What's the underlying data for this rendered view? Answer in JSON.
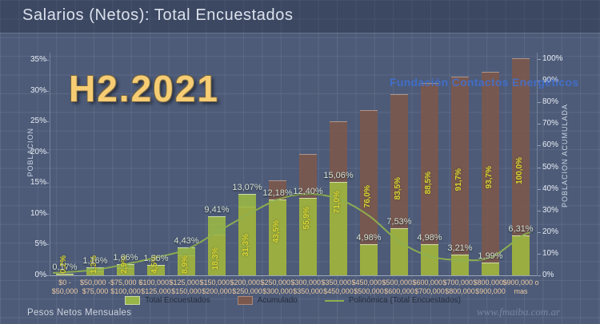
{
  "header": {
    "title": "Salarios (Netos): Total Encuestados"
  },
  "overlay": {
    "period_label": "H2.2021",
    "org_label": "Fundación Contactos Energéticos",
    "watermark": "www.fmaiba.com.ar"
  },
  "footer": {
    "axis_note": "Pesos Netos Mensuales"
  },
  "colors": {
    "background": "#4d5b78",
    "bar_total": "#a4c53e",
    "bar_acumulado": "#7b584e",
    "trend_line": "#8fb04f",
    "period_text": "#f7cd74",
    "org_text": "#3f72d8",
    "acum_label_text": "#d9d633",
    "category_text": "#edcaa3"
  },
  "chart_data": {
    "type": "bar",
    "title": "Salarios (Netos): Total Encuestados",
    "xlabel": "Pesos Netos Mensuales",
    "ylabel_left": "POBLACION",
    "ylabel_right": "POBLACION ACUMULADA",
    "ylim_left": [
      0,
      35
    ],
    "ylim_right": [
      0,
      100
    ],
    "yticks_left": [
      "0%",
      "5%",
      "10%",
      "15%",
      "20%",
      "25%",
      "30%",
      "35%"
    ],
    "yticks_right": [
      "0%",
      "10%",
      "20%",
      "30%",
      "40%",
      "50%",
      "60%",
      "70%",
      "80%",
      "90%",
      "100%"
    ],
    "grid": true,
    "legend_position": "bottom",
    "categories_line1": [
      "$0 -",
      "$50,000 -",
      "$75,000 -",
      "$100,000 -",
      "$125,000 -",
      "$150,000 -",
      "$200,000 -",
      "$250,000 -",
      "$300,000 -",
      "$350,000 -",
      "$450,000 -",
      "$500,000 -",
      "$600,000 -",
      "$700,000 -",
      "$800,000 -",
      "$900,000 o"
    ],
    "categories_line2": [
      "$50,000",
      "$75,000",
      "$100,000",
      "$125,000",
      "$150,000",
      "$200,000",
      "$250,000",
      "$300,000",
      "$350,000",
      "$450,000",
      "$500,000",
      "$600,000",
      "$700,000",
      "$800,000",
      "$900,000",
      "mas"
    ],
    "series": [
      {
        "name": "Total Encuestados",
        "type": "bar",
        "axis": "left",
        "values": [
          0.17,
          1.16,
          1.66,
          1.56,
          4.43,
          9.41,
          13.07,
          12.18,
          12.4,
          15.06,
          4.98,
          7.53,
          4.98,
          3.21,
          1.99,
          6.31
        ],
        "labels": [
          "0,17%",
          "1,16%",
          "1,66%",
          "1,56%",
          "4,43%",
          "9,41%",
          "13,07%",
          "12,18%",
          "12,40%",
          "15,06%",
          "4,98%",
          "7,53%",
          "4,98%",
          "3,21%",
          "1,99%",
          "6,31%"
        ]
      },
      {
        "name": "Acumulado",
        "type": "bar",
        "axis": "right",
        "values": [
          0.2,
          1.3,
          2.9,
          4.5,
          8.9,
          18.3,
          31.3,
          43.5,
          55.9,
          71.0,
          76.0,
          83.5,
          88.5,
          91.7,
          93.7,
          100.0
        ],
        "labels": [
          "0,2%",
          "1,3%",
          "2,9%",
          "4,5%",
          "8,9%",
          "18,3%",
          "31,3%",
          "43,5%",
          "55,9%",
          "71,0%",
          "76,0%",
          "83,5%",
          "88,5%",
          "91,7%",
          "93,7%",
          "100,0%"
        ]
      },
      {
        "name": "Polinómica (Total Encuestados)",
        "type": "line",
        "axis": "left",
        "values": [
          0.5,
          0.9,
          1.8,
          2.9,
          4.2,
          7.0,
          9.8,
          12.3,
          13.2,
          12.4,
          9.7,
          5.5,
          3.1,
          2.5,
          2.9,
          6.3
        ]
      }
    ],
    "legend": [
      "Total Encuestados",
      "Acumulado",
      "Polinómica (Total Encuestados)"
    ]
  }
}
